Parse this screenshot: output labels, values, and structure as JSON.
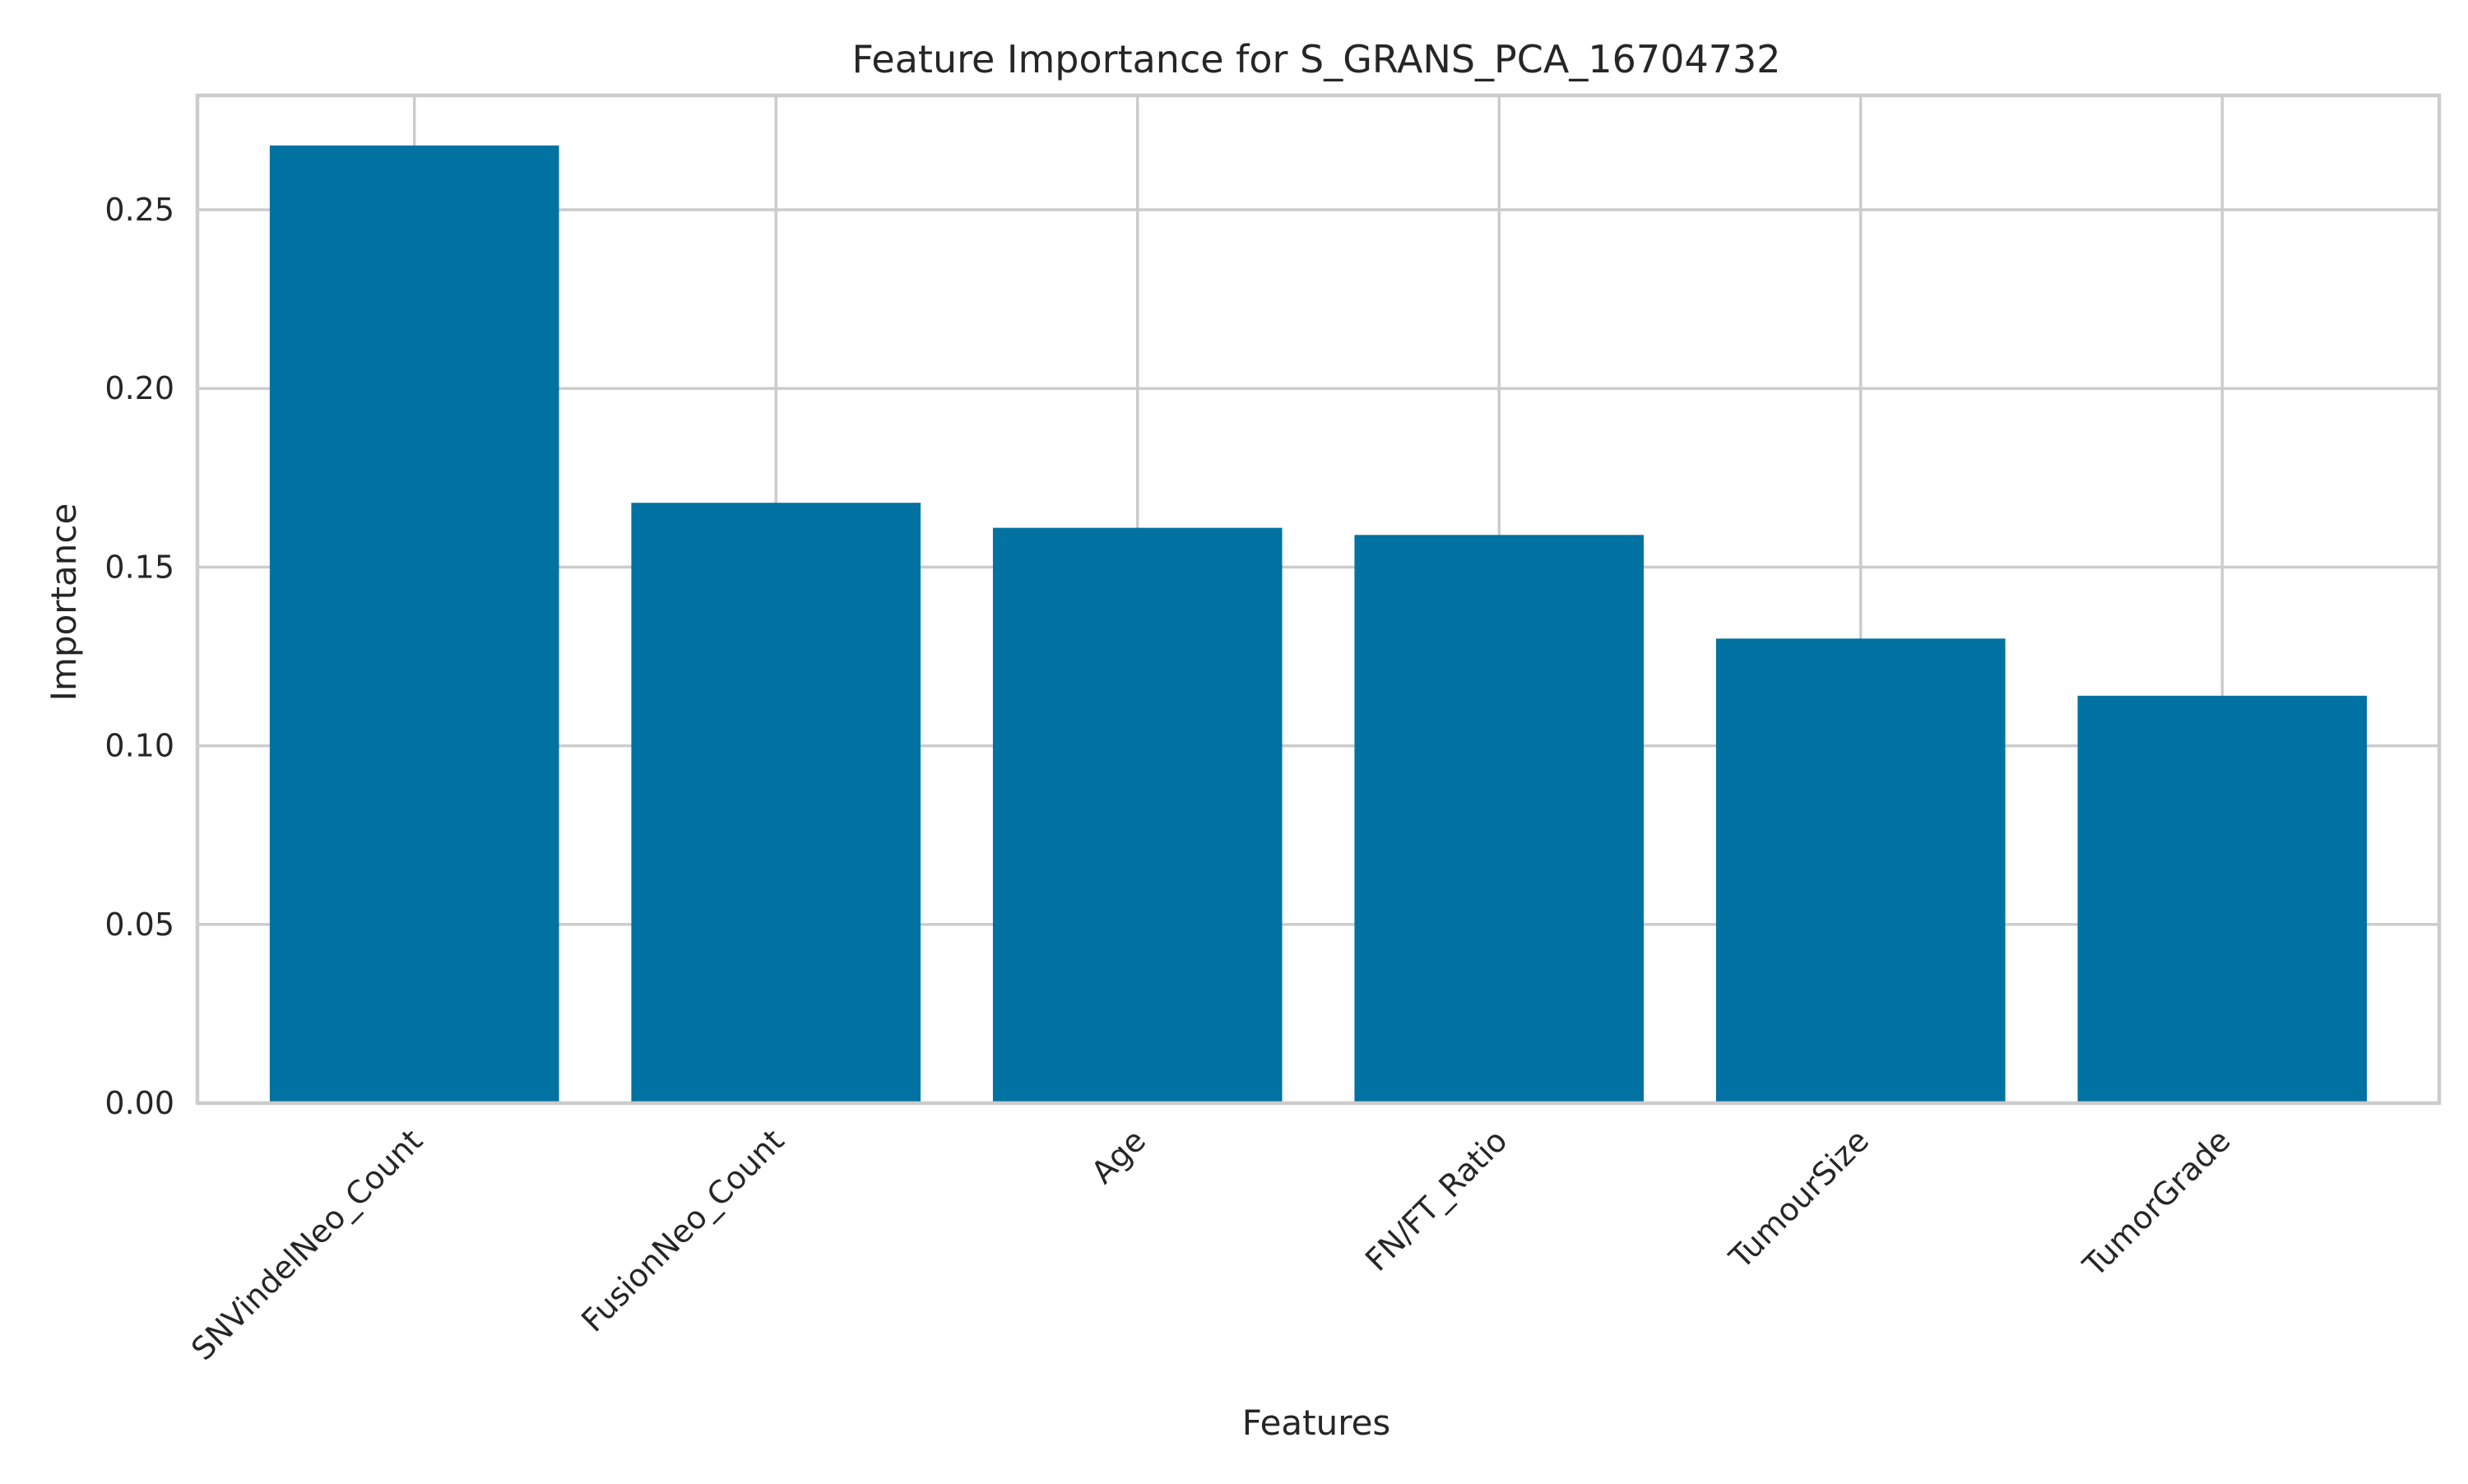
{
  "chart_data": {
    "type": "bar",
    "title": "Feature Importance for S_GRANS_PCA_16704732",
    "xlabel": "Features",
    "ylabel": "Importance",
    "categories": [
      "SNVindelNeo_Count",
      "FusionNeo_Count",
      "Age",
      "FN/FT_Ratio",
      "TumourSize",
      "TumorGrade"
    ],
    "values": [
      0.268,
      0.168,
      0.161,
      0.159,
      0.13,
      0.114
    ],
    "ylim": [
      0,
      0.282
    ],
    "yticks": [
      0.0,
      0.05,
      0.1,
      0.15,
      0.2,
      0.25
    ],
    "ytick_labels": [
      "0.00",
      "0.05",
      "0.10",
      "0.15",
      "0.20",
      "0.25"
    ],
    "bar_color": "#0272a2",
    "grid": true,
    "xtick_rotation": "45deg"
  }
}
